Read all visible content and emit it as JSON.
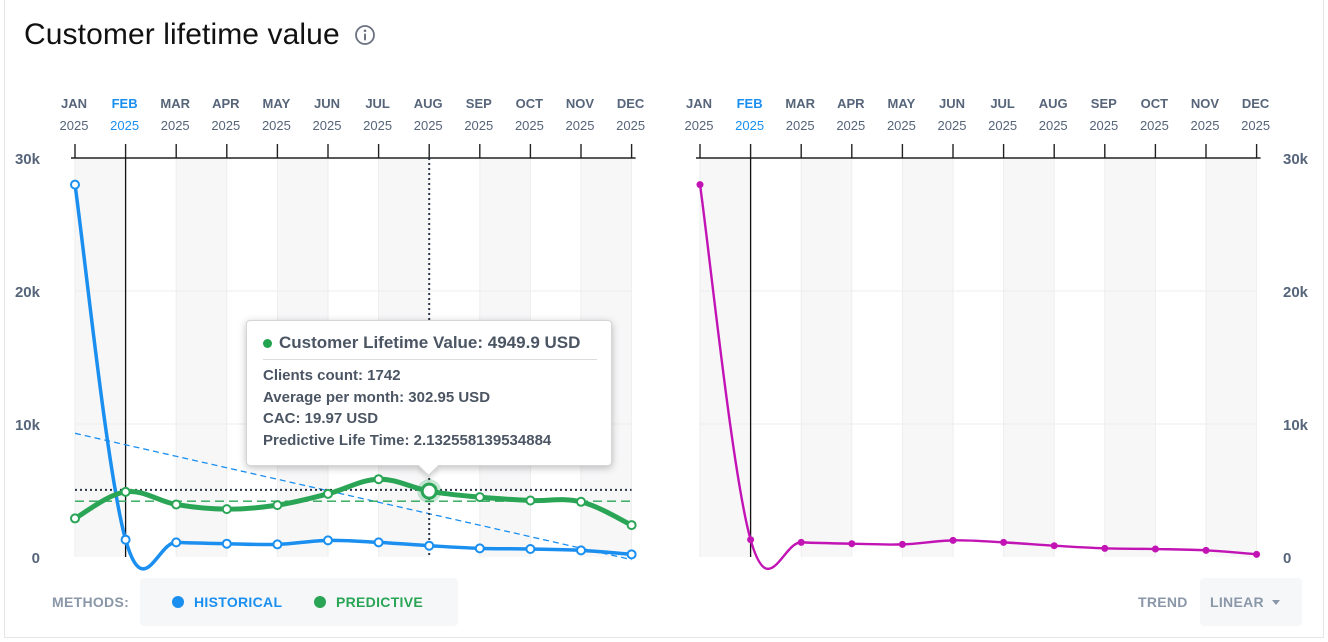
{
  "title": "Customer lifetime value",
  "info_icon": "info-circle-icon",
  "colors": {
    "historical": "#1a8ff0",
    "predictive": "#2aa556",
    "trend_line": "#c213b5",
    "selected_month": "#1a8ff0",
    "month_label": "#56657a",
    "axis_label": "#56657a",
    "label_muted": "#8a97a8"
  },
  "tooltip": {
    "title": "Customer Lifetime Value: 4949.9 USD",
    "clients": "Clients count: 1742",
    "average": "Average per month: 302.95 USD",
    "cac": "CAC: 19.97 USD",
    "predictive_life_time": "Predictive Life Time: 2.132558139534884"
  },
  "methods": {
    "label": "METHODS:",
    "historical": "HISTORICAL",
    "predictive": "PREDICTIVE"
  },
  "trend": {
    "label": "TREND",
    "value": "LINEAR"
  },
  "chart_data": [
    {
      "type": "line",
      "name": "left",
      "x": [
        "JAN 2025",
        "FEB 2025",
        "MAR 2025",
        "APR 2025",
        "MAY 2025",
        "JUN 2025",
        "JUL 2025",
        "AUG 2025",
        "SEP 2025",
        "OCT 2025",
        "NOV 2025",
        "DEC 2025"
      ],
      "month_labels": [
        "JAN",
        "FEB",
        "MAR",
        "APR",
        "MAY",
        "JUN",
        "JUL",
        "AUG",
        "SEP",
        "OCT",
        "NOV",
        "DEC"
      ],
      "year_labels": [
        "2025",
        "2025",
        "2025",
        "2025",
        "2025",
        "2025",
        "2025",
        "2025",
        "2025",
        "2025",
        "2025",
        "2025"
      ],
      "selected_index": 1,
      "hover_index": 7,
      "ylim": [
        0,
        30000
      ],
      "yticks": [
        0,
        10000,
        20000,
        30000
      ],
      "ytick_labels": [
        "0",
        "10k",
        "20k",
        "30k"
      ],
      "series": [
        {
          "name": "HISTORICAL",
          "values": [
            28000,
            1300,
            1100,
            1000,
            950,
            1250,
            1100,
            850,
            650,
            600,
            500,
            200
          ]
        },
        {
          "name": "PREDICTIVE",
          "values": [
            2900,
            4900,
            3950,
            3600,
            3900,
            4750,
            5850,
            4949.9,
            4500,
            4250,
            4150,
            2400
          ]
        }
      ],
      "historical_trend": {
        "start": 9300,
        "end": -200
      },
      "predictive_average": 4200,
      "crosshair_y": 5050
    },
    {
      "type": "line",
      "name": "right",
      "x": [
        "JAN 2025",
        "FEB 2025",
        "MAR 2025",
        "APR 2025",
        "MAY 2025",
        "JUN 2025",
        "JUL 2025",
        "AUG 2025",
        "SEP 2025",
        "OCT 2025",
        "NOV 2025",
        "DEC 2025"
      ],
      "month_labels": [
        "JAN",
        "FEB",
        "MAR",
        "APR",
        "MAY",
        "JUN",
        "JUL",
        "AUG",
        "SEP",
        "OCT",
        "NOV",
        "DEC"
      ],
      "year_labels": [
        "2025",
        "2025",
        "2025",
        "2025",
        "2025",
        "2025",
        "2025",
        "2025",
        "2025",
        "2025",
        "2025",
        "2025"
      ],
      "selected_index": 1,
      "ylim": [
        0,
        30000
      ],
      "yticks": [
        0,
        10000,
        20000,
        30000
      ],
      "ytick_labels": [
        "0",
        "10k",
        "20k",
        "30k"
      ],
      "series": [
        {
          "name": "TREND",
          "values": [
            28000,
            1300,
            1100,
            1000,
            950,
            1250,
            1100,
            850,
            650,
            600,
            500,
            200
          ]
        }
      ]
    }
  ]
}
